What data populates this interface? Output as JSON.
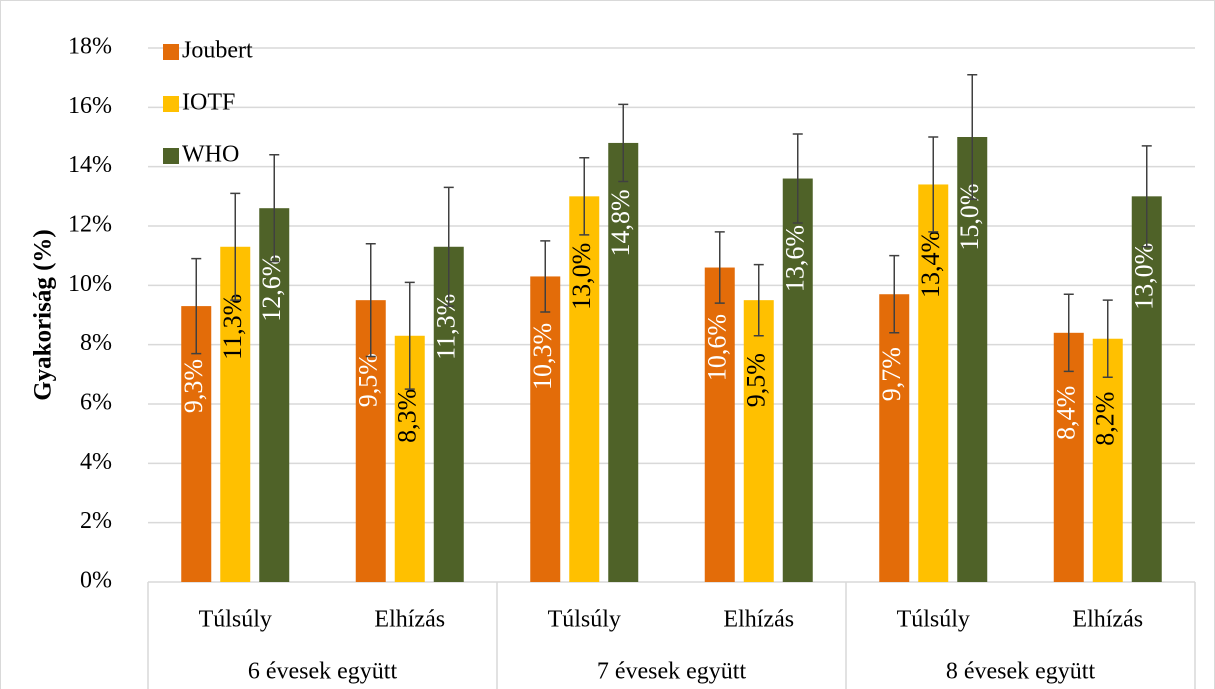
{
  "chart_data": {
    "type": "bar",
    "ylabel": "Gyakoriság (%)",
    "categories": [
      "Túlsúly",
      "Elhízás",
      "Túlsúly",
      "Elhízás",
      "Túlsúly",
      "Elhízás"
    ],
    "groups": [
      "6 évesek együtt",
      "7 évesek együtt",
      "8 évesek együtt"
    ],
    "series": [
      {
        "name": "Joubert",
        "color": "#e36c09",
        "label_color": "#ffffff",
        "values": [
          9.3,
          9.5,
          10.3,
          10.6,
          9.7,
          8.4
        ],
        "value_labels": [
          "9,3%",
          "9,5%",
          "10,3%",
          "10,6%",
          "9,7%",
          "8,4%"
        ],
        "errors": [
          1.6,
          1.9,
          1.2,
          1.2,
          1.3,
          1.3
        ]
      },
      {
        "name": "IOTF",
        "color": "#ffc000",
        "label_color": "#000000",
        "values": [
          11.3,
          8.3,
          13.0,
          9.5,
          13.4,
          8.2
        ],
        "value_labels": [
          "11,3%",
          "8,3%",
          "13,0%",
          "9,5%",
          "13,4%",
          "8,2%"
        ],
        "errors": [
          1.8,
          1.8,
          1.3,
          1.2,
          1.6,
          1.3
        ]
      },
      {
        "name": "WHO",
        "color": "#4f6228",
        "label_color": "#ffffff",
        "values": [
          12.6,
          11.3,
          14.8,
          13.6,
          15.0,
          13.0
        ],
        "value_labels": [
          "12,6%",
          "11,3%",
          "14,8%",
          "13,6%",
          "15,0%",
          "13,0%"
        ],
        "errors": [
          1.8,
          2.0,
          1.3,
          1.5,
          2.1,
          1.7
        ]
      }
    ],
    "ylim": [
      0,
      18
    ],
    "yticks": [
      {
        "value": 0,
        "label": "0%"
      },
      {
        "value": 2,
        "label": "2%"
      },
      {
        "value": 4,
        "label": "4%"
      },
      {
        "value": 6,
        "label": "6%"
      },
      {
        "value": 8,
        "label": "8%"
      },
      {
        "value": 10,
        "label": "10%"
      },
      {
        "value": 12,
        "label": "12%"
      },
      {
        "value": 14,
        "label": "14%"
      },
      {
        "value": 16,
        "label": "16%"
      },
      {
        "value": 18,
        "label": "18%"
      }
    ],
    "grid": true,
    "legend": "top-left"
  }
}
